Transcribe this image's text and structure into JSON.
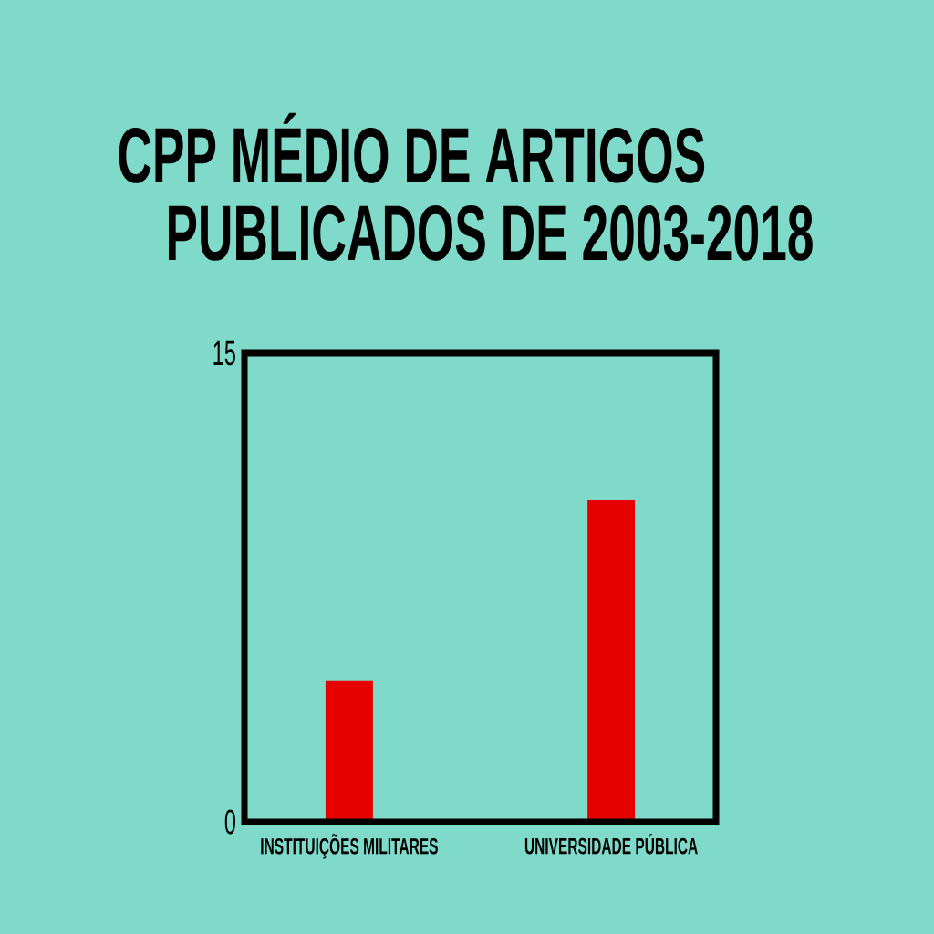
{
  "chart_data": {
    "type": "bar",
    "title": "CPP MÉDIO DE ARTIGOS PUBLICADOS DE 2003-2018",
    "categories": [
      "INSTITUIÇÕES MILITARES",
      "UNIVERSIDADE PÚBLICA"
    ],
    "values": [
      4.5,
      10.3
    ],
    "color": "#e60000",
    "ylim": [
      0,
      15
    ],
    "yticks": [
      0,
      15
    ]
  }
}
